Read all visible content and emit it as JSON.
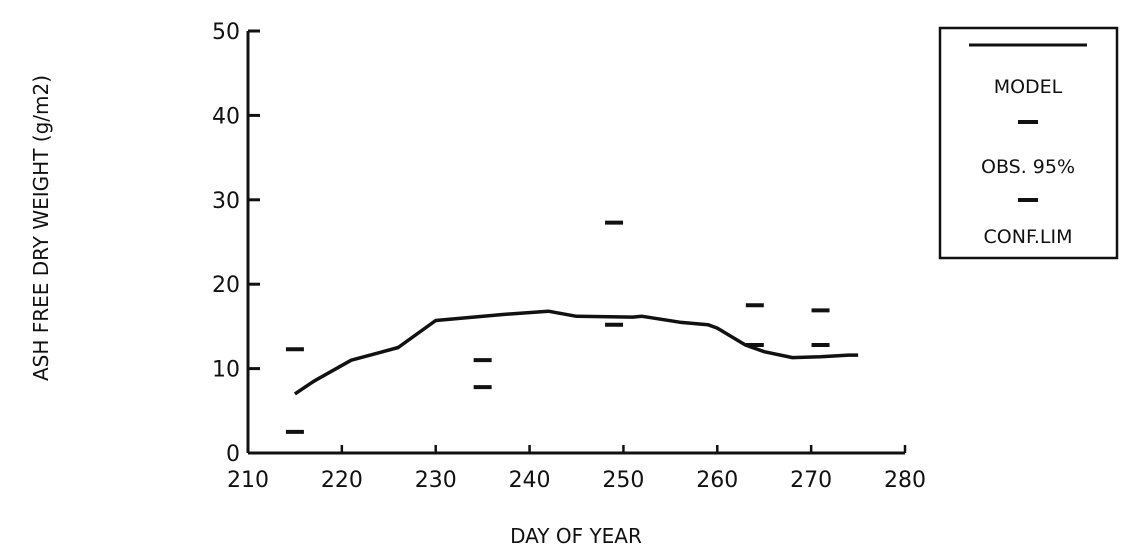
{
  "chart_data": {
    "type": "line",
    "xlabel": "DAY OF YEAR",
    "ylabel": "ASH FREE DRY WEIGHT (g/m2)",
    "xlim": [
      210,
      280
    ],
    "ylim": [
      0,
      50
    ],
    "xticks": [
      210,
      220,
      230,
      240,
      250,
      260,
      270,
      280
    ],
    "yticks": [
      0,
      10,
      20,
      30,
      40,
      50
    ],
    "grid": false,
    "legend_position": "top-right",
    "legend": {
      "model_label": "MODEL",
      "obs_label": "OBS. 95%",
      "conf_label": "CONF.LIM"
    },
    "series": [
      {
        "name": "MODEL",
        "style": "line",
        "x": [
          215,
          217,
          221,
          226,
          230,
          237,
          242,
          245,
          251,
          252,
          256,
          259,
          260,
          263,
          265,
          268,
          271,
          274,
          275
        ],
        "y": [
          7,
          8.5,
          11,
          12.5,
          15.7,
          16.4,
          16.8,
          16.2,
          16.1,
          16.2,
          15.5,
          15.2,
          14.8,
          12.8,
          12,
          11.3,
          11.4,
          11.6,
          11.6
        ]
      },
      {
        "name": "OBS. 95% CONF.LIM",
        "style": "dash-marker",
        "x": [
          215,
          215,
          235,
          235,
          249,
          249,
          264,
          264,
          271,
          271
        ],
        "y": [
          12.3,
          2.5,
          11,
          7.8,
          27.3,
          15.2,
          17.5,
          12.8,
          16.9,
          12.8
        ]
      }
    ],
    "colors": {
      "ink": "#111111",
      "background": "#ffffff"
    }
  }
}
